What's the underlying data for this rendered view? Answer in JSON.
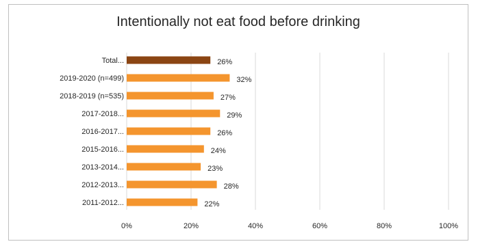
{
  "chart_data": {
    "type": "bar",
    "orientation": "horizontal",
    "title": "Intentionally not eat food before drinking",
    "categories": [
      "Total...",
      "2019-2020 (n=499)",
      "2018-2019 (n=535)",
      "2017-2018...",
      "2016-2017...",
      "2015-2016...",
      "2013-2014...",
      "2012-2013...",
      "2011-2012..."
    ],
    "values": [
      26,
      32,
      27,
      29,
      26,
      24,
      23,
      28,
      22
    ],
    "value_labels": [
      "26%",
      "32%",
      "27%",
      "29%",
      "26%",
      "24%",
      "23%",
      "28%",
      "22%"
    ],
    "bar_colors": [
      "#8B4513",
      "#F4952E",
      "#F4952E",
      "#F4952E",
      "#F4952E",
      "#F4952E",
      "#F4952E",
      "#F4952E",
      "#F4952E"
    ],
    "xlim": [
      0,
      100
    ],
    "xticks": [
      "0%",
      "20%",
      "40%",
      "60%",
      "80%",
      "100%"
    ],
    "grid": "vertical",
    "legend": "none"
  }
}
